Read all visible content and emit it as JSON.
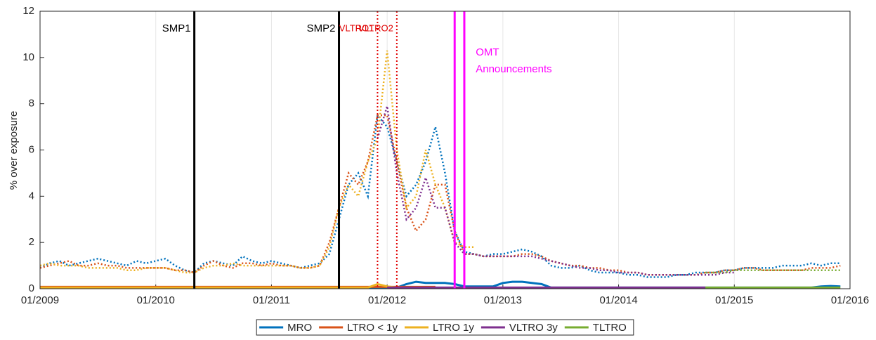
{
  "chart_data": {
    "type": "line",
    "ylabel": "% over exposure",
    "xlim": [
      2009,
      2016
    ],
    "xticks": [
      {
        "value": 2009,
        "label": "01/2009"
      },
      {
        "value": 2010,
        "label": "01/2010"
      },
      {
        "value": 2011,
        "label": "01/2011"
      },
      {
        "value": 2012,
        "label": "01/2012"
      },
      {
        "value": 2013,
        "label": "01/2013"
      },
      {
        "value": 2014,
        "label": "01/2014"
      },
      {
        "value": 2015,
        "label": "01/2015"
      },
      {
        "value": 2016,
        "label": "01/2016"
      }
    ],
    "ylim": [
      0,
      12
    ],
    "yticks": [
      0,
      2,
      4,
      6,
      8,
      10,
      12
    ],
    "grid": true,
    "legend": "bottom",
    "x": [
      "2009-01",
      "2009-02",
      "2009-03",
      "2009-04",
      "2009-05",
      "2009-06",
      "2009-07",
      "2009-08",
      "2009-09",
      "2009-10",
      "2009-11",
      "2009-12",
      "2010-01",
      "2010-02",
      "2010-03",
      "2010-04",
      "2010-05",
      "2010-06",
      "2010-07",
      "2010-08",
      "2010-09",
      "2010-10",
      "2010-11",
      "2010-12",
      "2011-01",
      "2011-02",
      "2011-03",
      "2011-04",
      "2011-05",
      "2011-06",
      "2011-07",
      "2011-08",
      "2011-09",
      "2011-10",
      "2011-11",
      "2011-12",
      "2012-01",
      "2012-02",
      "2012-03",
      "2012-04",
      "2012-05",
      "2012-06",
      "2012-07",
      "2012-08",
      "2012-09",
      "2012-10",
      "2012-11",
      "2012-12",
      "2013-01",
      "2013-02",
      "2013-03",
      "2013-04",
      "2013-05",
      "2013-06",
      "2013-07",
      "2013-08",
      "2013-09",
      "2013-10",
      "2013-11",
      "2013-12",
      "2014-01",
      "2014-02",
      "2014-03",
      "2014-04",
      "2014-05",
      "2014-06",
      "2014-07",
      "2014-08",
      "2014-09",
      "2014-10",
      "2014-11",
      "2014-12",
      "2015-01",
      "2015-02",
      "2015-03",
      "2015-04",
      "2015-05",
      "2015-06",
      "2015-07",
      "2015-08",
      "2015-09",
      "2015-10",
      "2015-11",
      "2015-12"
    ],
    "series": [
      {
        "name": "MRO",
        "color": "#0072bd",
        "values": [
          0.05,
          0.05,
          0.05,
          0.05,
          0.05,
          0.05,
          0.05,
          0.05,
          0.05,
          0.05,
          0.05,
          0.05,
          0.05,
          0.05,
          0.05,
          0.05,
          0.05,
          0.05,
          0.05,
          0.05,
          0.05,
          0.05,
          0.05,
          0.05,
          0.05,
          0.05,
          0.05,
          0.05,
          0.05,
          0.05,
          0.05,
          0.05,
          0.05,
          0.05,
          0.05,
          0.05,
          0.05,
          0.05,
          0.2,
          0.3,
          0.25,
          0.25,
          0.25,
          0.2,
          0.1,
          0.1,
          0.1,
          0.1,
          0.25,
          0.3,
          0.3,
          0.25,
          0.2,
          0.05,
          0.05,
          0.05,
          0.05,
          0.05,
          0.05,
          0.05,
          0.05,
          0.05,
          0.05,
          0.05,
          0.05,
          0.05,
          0.05,
          0.05,
          0.05,
          0.05,
          0.05,
          0.05,
          0.05,
          0.05,
          0.05,
          0.05,
          0.05,
          0.05,
          0.05,
          0.05,
          0.05,
          0.1,
          0.12,
          0.1
        ],
        "values_dotted": [
          0.9,
          1.1,
          1.2,
          1.0,
          1.1,
          1.2,
          1.3,
          1.2,
          1.1,
          1.0,
          1.2,
          1.1,
          1.2,
          1.3,
          1.0,
          0.8,
          0.7,
          1.1,
          1.2,
          1.1,
          1.0,
          1.4,
          1.2,
          1.1,
          1.2,
          1.1,
          1.0,
          0.9,
          1.0,
          1.1,
          1.5,
          3.0,
          4.5,
          5.0,
          4.0,
          7.5,
          7.0,
          5.5,
          4.0,
          4.5,
          5.5,
          7.0,
          5.0,
          2.5,
          1.6,
          1.5,
          1.4,
          1.5,
          1.5,
          1.6,
          1.7,
          1.6,
          1.4,
          1.0,
          0.9,
          0.9,
          1.0,
          0.8,
          0.7,
          0.7,
          0.7,
          0.6,
          0.6,
          0.5,
          0.5,
          0.5,
          0.6,
          0.6,
          0.7,
          0.7,
          0.7,
          0.8,
          0.8,
          0.9,
          0.9,
          0.9,
          0.9,
          1.0,
          1.0,
          1.0,
          1.1,
          1.0,
          1.1,
          1.1
        ]
      },
      {
        "name": "LTRO < 1y",
        "color": "#d95319",
        "values": [
          0.08,
          0.08,
          0.08,
          0.08,
          0.08,
          0.08,
          0.08,
          0.08,
          0.08,
          0.08,
          0.08,
          0.08,
          0.08,
          0.08,
          0.08,
          0.08,
          0.08,
          0.08,
          0.08,
          0.08,
          0.08,
          0.08,
          0.08,
          0.08,
          0.08,
          0.08,
          0.08,
          0.08,
          0.08,
          0.08,
          0.08,
          0.08,
          0.08,
          0.08,
          0.08,
          0.08,
          0.08,
          0.08,
          0.08,
          0.08,
          0.08,
          0.08,
          null,
          null,
          null,
          null,
          null,
          null,
          null,
          null,
          null,
          null,
          null,
          null,
          null,
          null,
          null,
          null,
          null,
          null,
          null,
          null,
          null,
          null,
          null,
          null,
          null,
          null,
          null,
          null,
          null,
          null,
          null,
          null,
          null,
          null,
          null,
          null,
          null,
          null,
          null,
          null,
          null,
          null
        ],
        "values_dotted": [
          0.9,
          1.0,
          1.1,
          1.2,
          1.0,
          1.0,
          1.1,
          1.0,
          1.0,
          0.9,
          0.9,
          0.9,
          0.9,
          0.9,
          0.8,
          0.8,
          0.7,
          1.0,
          1.2,
          1.0,
          0.9,
          1.1,
          1.1,
          1.0,
          1.1,
          1.0,
          1.0,
          0.9,
          0.9,
          1.0,
          2.0,
          3.5,
          5.0,
          4.5,
          5.5,
          7.5,
          7.5,
          5.5,
          3.5,
          2.5,
          3.0,
          4.5,
          4.5,
          2.5,
          1.5,
          1.5,
          1.4,
          1.4,
          1.4,
          1.4,
          1.5,
          1.5,
          1.4,
          1.2,
          1.1,
          1.0,
          1.0,
          0.9,
          0.9,
          0.8,
          0.8,
          0.7,
          0.7,
          0.6,
          0.6,
          0.6,
          0.6,
          0.6,
          0.6,
          0.7,
          0.7,
          0.8,
          0.8,
          0.9,
          0.9,
          0.8,
          0.8,
          0.8,
          0.8,
          0.8,
          0.9,
          0.9,
          0.9,
          1.0
        ]
      },
      {
        "name": "LTRO 1y",
        "color": "#edb120",
        "values": [
          0.05,
          0.05,
          0.05,
          0.05,
          0.05,
          0.05,
          0.05,
          0.05,
          0.05,
          0.05,
          0.05,
          0.05,
          0.05,
          0.05,
          0.05,
          0.05,
          0.05,
          0.05,
          0.05,
          0.05,
          0.05,
          0.05,
          0.05,
          0.05,
          0.05,
          0.05,
          0.05,
          0.05,
          0.05,
          0.05,
          0.05,
          0.05,
          0.05,
          0.05,
          0.05,
          0.2,
          0.1,
          0.05,
          null,
          null,
          null,
          null,
          null,
          null,
          null,
          null,
          null,
          null,
          null,
          null,
          null,
          null,
          null,
          null,
          null,
          null,
          null,
          null,
          null,
          null,
          null,
          null,
          null,
          null,
          null,
          null,
          null,
          null,
          null,
          null,
          null,
          null,
          null,
          null,
          null,
          null,
          null,
          null,
          null,
          null,
          null,
          null,
          null,
          null
        ],
        "values_dotted": [
          1.0,
          1.1,
          1.0,
          1.0,
          1.0,
          0.9,
          0.9,
          0.9,
          0.9,
          0.8,
          0.8,
          0.9,
          0.9,
          0.9,
          0.8,
          0.7,
          0.7,
          0.9,
          1.0,
          1.0,
          1.1,
          1.0,
          1.0,
          1.0,
          1.0,
          1.0,
          1.0,
          0.9,
          0.9,
          1.0,
          1.8,
          3.5,
          4.5,
          4.0,
          5.5,
          6.5,
          10.3,
          6.0,
          3.5,
          4.0,
          6.0,
          4.5,
          3.5,
          2.0,
          1.8,
          1.8,
          null,
          null,
          null,
          null,
          null,
          null,
          null,
          null,
          null,
          null,
          null,
          null,
          null,
          null,
          null,
          null,
          null,
          null,
          null,
          null,
          null,
          null,
          null,
          null,
          null,
          null,
          null,
          null,
          null,
          null,
          null,
          null,
          null,
          null,
          null,
          null,
          null,
          null
        ]
      },
      {
        "name": "VLTRO 3y",
        "color": "#7e2f8e",
        "values": [
          null,
          null,
          null,
          null,
          null,
          null,
          null,
          null,
          null,
          null,
          null,
          null,
          null,
          null,
          null,
          null,
          null,
          null,
          null,
          null,
          null,
          null,
          null,
          null,
          null,
          null,
          null,
          null,
          null,
          null,
          null,
          null,
          null,
          null,
          null,
          null,
          0.05,
          0.05,
          0.05,
          0.05,
          0.05,
          0.05,
          0.05,
          0.05,
          0.05,
          0.05,
          0.05,
          0.05,
          0.05,
          0.05,
          0.05,
          0.05,
          0.05,
          0.05,
          0.05,
          0.05,
          0.05,
          0.05,
          0.05,
          0.05,
          0.05,
          0.05,
          0.05,
          0.05,
          0.05,
          0.05,
          0.05,
          0.05,
          0.05,
          0.05,
          null,
          null,
          null,
          null,
          null,
          null,
          null,
          null,
          null,
          null,
          null,
          null,
          null,
          null
        ],
        "values_dotted": [
          null,
          null,
          null,
          null,
          null,
          null,
          null,
          null,
          null,
          null,
          null,
          null,
          null,
          null,
          null,
          null,
          null,
          null,
          null,
          null,
          null,
          null,
          null,
          null,
          null,
          null,
          null,
          null,
          null,
          null,
          null,
          null,
          null,
          null,
          null,
          6.5,
          7.9,
          5.0,
          3.0,
          3.5,
          4.8,
          3.5,
          3.5,
          2.0,
          1.5,
          1.5,
          1.4,
          1.4,
          1.4,
          1.4,
          1.4,
          1.4,
          1.3,
          1.2,
          1.1,
          1.0,
          0.9,
          0.9,
          0.8,
          0.8,
          0.7,
          0.7,
          0.7,
          0.6,
          0.6,
          0.6,
          0.6,
          0.6,
          0.6,
          0.6,
          0.6,
          0.7,
          0.7,
          null,
          null,
          null,
          null,
          null,
          null,
          null,
          null,
          null,
          null,
          null
        ]
      },
      {
        "name": "TLTRO",
        "color": "#77ac30",
        "values": [
          null,
          null,
          null,
          null,
          null,
          null,
          null,
          null,
          null,
          null,
          null,
          null,
          null,
          null,
          null,
          null,
          null,
          null,
          null,
          null,
          null,
          null,
          null,
          null,
          null,
          null,
          null,
          null,
          null,
          null,
          null,
          null,
          null,
          null,
          null,
          null,
          null,
          null,
          null,
          null,
          null,
          null,
          null,
          null,
          null,
          null,
          null,
          null,
          null,
          null,
          null,
          null,
          null,
          null,
          null,
          null,
          null,
          null,
          null,
          null,
          null,
          null,
          null,
          null,
          null,
          null,
          null,
          null,
          null,
          0.05,
          0.05,
          0.05,
          0.05,
          0.05,
          0.05,
          0.05,
          0.05,
          0.05,
          0.05,
          0.05,
          0.05,
          0.05,
          0.05,
          0.05
        ],
        "values_dotted": [
          null,
          null,
          null,
          null,
          null,
          null,
          null,
          null,
          null,
          null,
          null,
          null,
          null,
          null,
          null,
          null,
          null,
          null,
          null,
          null,
          null,
          null,
          null,
          null,
          null,
          null,
          null,
          null,
          null,
          null,
          null,
          null,
          null,
          null,
          null,
          null,
          null,
          null,
          null,
          null,
          null,
          null,
          null,
          null,
          null,
          null,
          null,
          null,
          null,
          null,
          null,
          null,
          null,
          null,
          null,
          null,
          null,
          null,
          null,
          null,
          null,
          null,
          null,
          null,
          null,
          null,
          null,
          null,
          null,
          0.7,
          0.7,
          0.7,
          0.8,
          0.8,
          0.8,
          0.8,
          0.8,
          0.8,
          0.8,
          0.8,
          0.8,
          0.8,
          0.8,
          0.8
        ]
      }
    ],
    "events": [
      {
        "date": "2010-05",
        "label": [
          "SMP1"
        ],
        "color": "#000000",
        "style": "solid"
      },
      {
        "date": "2011-08",
        "label": [
          "SMP2"
        ],
        "color": "#000000",
        "style": "solid"
      },
      {
        "date": "2011-12",
        "label": [
          "VLTRO1"
        ],
        "color": "#e00000",
        "style": "dotted"
      },
      {
        "date": "2012-02",
        "label": [
          "VLTRO2"
        ],
        "color": "#e00000",
        "style": "dotted"
      },
      {
        "date": "2012-08",
        "label": [
          "OMT",
          "Announcements"
        ],
        "color": "#ff00ff",
        "style": "solid"
      },
      {
        "date": "2012-09",
        "color": "#ff00ff",
        "style": "solid"
      }
    ]
  }
}
